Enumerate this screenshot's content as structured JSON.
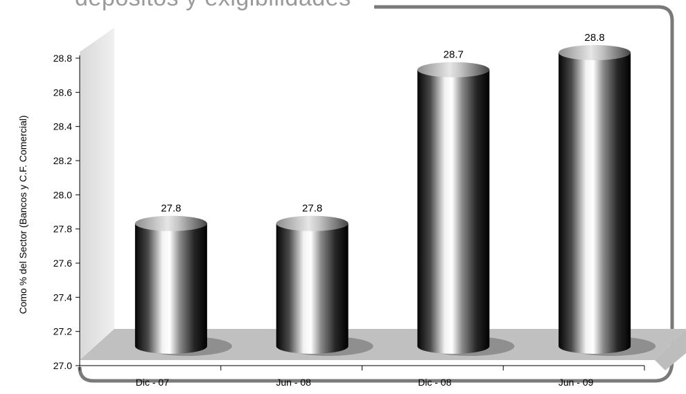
{
  "chart_data": {
    "type": "bar",
    "title": "depósitos y exigibilidades",
    "ylabel": "Como % del Sector (Bancos y C.F. Comercial)",
    "xlabel": "",
    "ylim": [
      27.0,
      28.8
    ],
    "yticks": [
      "27.0",
      "27.2",
      "27.4",
      "27.6",
      "27.8",
      "28.0",
      "28.2",
      "28.4",
      "28.6",
      "28.8"
    ],
    "categories": [
      "Dic - 07",
      "Jun - 08",
      "Dic - 08",
      "Jun - 09"
    ],
    "values": [
      27.8,
      27.8,
      28.7,
      28.8
    ],
    "data_labels": [
      "27.8",
      "27.8",
      "28.7",
      "28.8"
    ],
    "bar_style": "3d-cylinder",
    "legend": "none",
    "grid": false
  }
}
